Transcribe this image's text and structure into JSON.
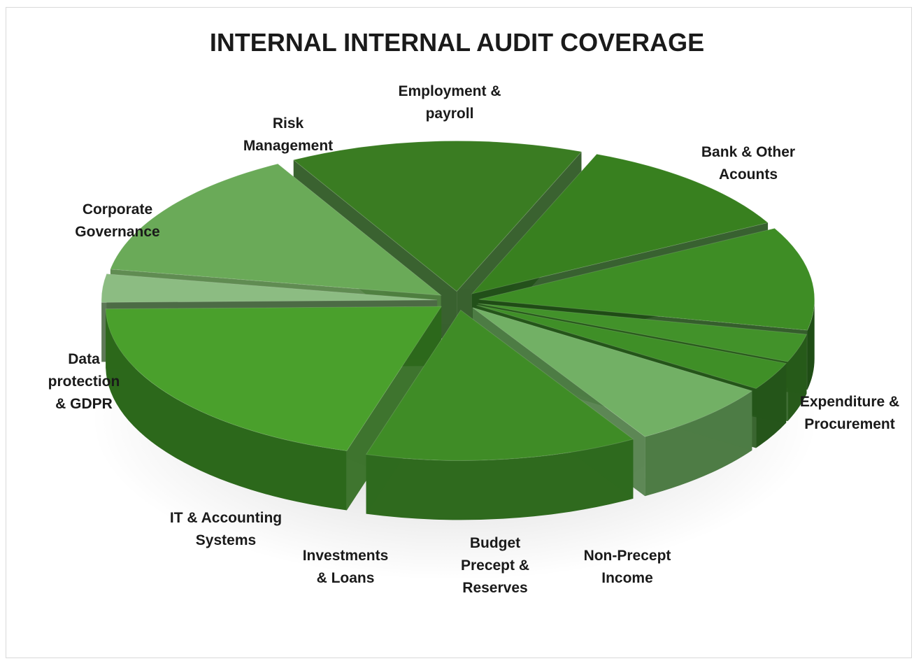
{
  "chart_data": {
    "type": "pie",
    "style": "3d-exploded",
    "title": "INTERNAL INTERNAL AUDIT COVERAGE",
    "legend": "none",
    "slices": [
      {
        "label": "Employment & payroll",
        "value": 14,
        "color": "#6aaa58",
        "side": "#4f7f3f"
      },
      {
        "label": "Bank & Other Acounts",
        "value": 14,
        "color": "#3a7c22",
        "side": "#25511a"
      },
      {
        "label": "Expenditure & Procurement",
        "value": 11,
        "color": "#38801f",
        "side": "#22501a"
      },
      {
        "label": "Non-Precept Income",
        "value": 11,
        "color": "#3e8d25",
        "side": "#1f4d15"
      },
      {
        "label": "Budget Precept & Reserves",
        "value": 3,
        "color": "#42922a",
        "side": "#275a1a"
      },
      {
        "label": "Investments & Loans",
        "value": 3,
        "color": "#3f8f27",
        "side": "#25551a"
      },
      {
        "label": "IT & Accounting Systems",
        "value": 7,
        "color": "#72b065",
        "side": "#4e7c45"
      },
      {
        "label": "Data protection & GDPR",
        "value": 13,
        "color": "#3f8c26",
        "side": "#2f6a1e"
      },
      {
        "label": "Corporate Governance",
        "value": 20,
        "color": "#4aa02c",
        "side": "#2c681b"
      },
      {
        "label": "Risk Management",
        "value": 3,
        "color": "#8cbc82",
        "side": "#4c6a45"
      }
    ]
  }
}
